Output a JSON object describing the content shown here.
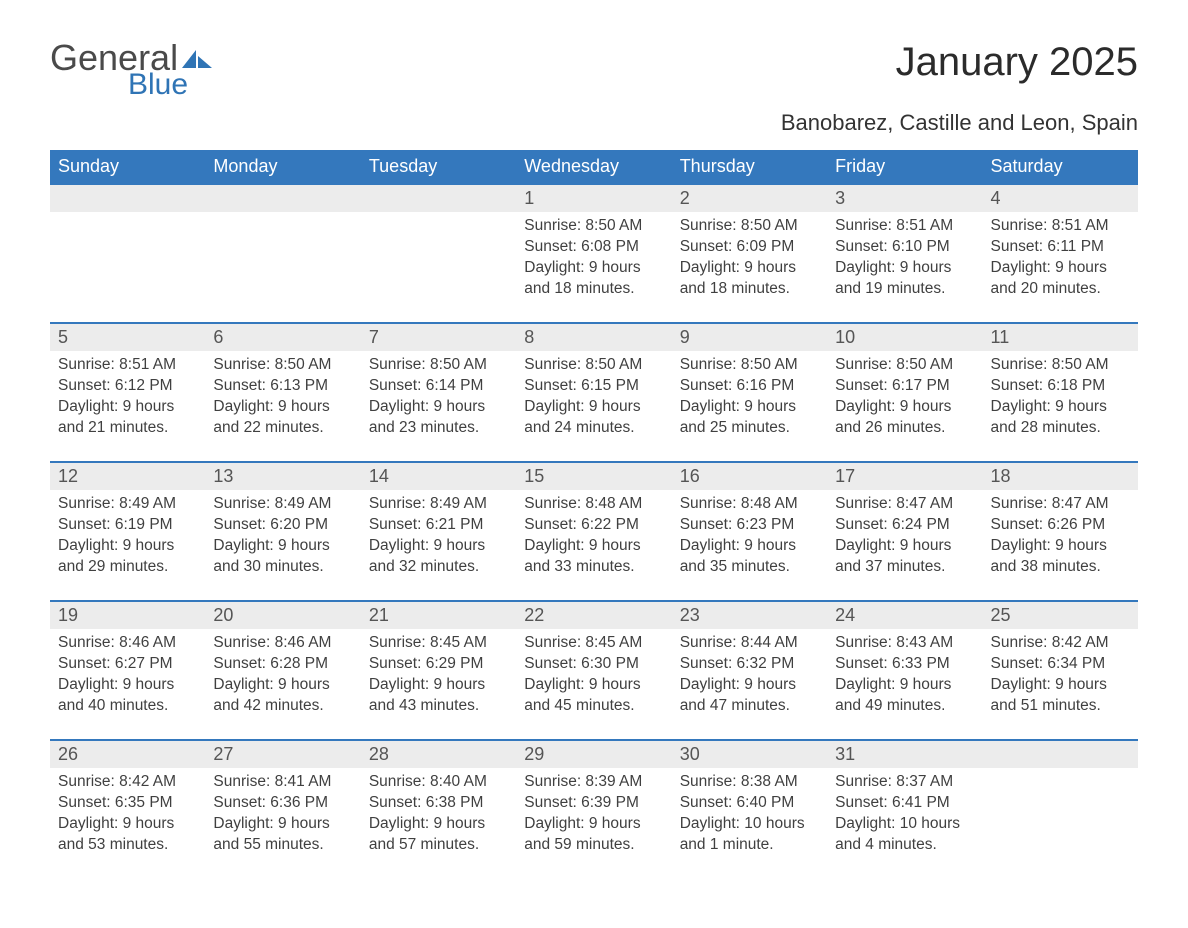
{
  "brand": {
    "general": "General",
    "blue": "Blue",
    "sail_color": "#2f74b5"
  },
  "title": "January 2025",
  "location": "Banobarez, Castille and Leon, Spain",
  "colors": {
    "header_bg": "#3478bd",
    "header_text": "#ffffff",
    "daynum_bg": "#ececec",
    "row_border": "#3478bd",
    "body_text": "#404040"
  },
  "day_headers": [
    "Sunday",
    "Monday",
    "Tuesday",
    "Wednesday",
    "Thursday",
    "Friday",
    "Saturday"
  ],
  "weeks": [
    [
      {
        "empty": true
      },
      {
        "empty": true
      },
      {
        "empty": true
      },
      {
        "num": "1",
        "sunrise": "Sunrise: 8:50 AM",
        "sunset": "Sunset: 6:08 PM",
        "day1": "Daylight: 9 hours",
        "day2": "and 18 minutes."
      },
      {
        "num": "2",
        "sunrise": "Sunrise: 8:50 AM",
        "sunset": "Sunset: 6:09 PM",
        "day1": "Daylight: 9 hours",
        "day2": "and 18 minutes."
      },
      {
        "num": "3",
        "sunrise": "Sunrise: 8:51 AM",
        "sunset": "Sunset: 6:10 PM",
        "day1": "Daylight: 9 hours",
        "day2": "and 19 minutes."
      },
      {
        "num": "4",
        "sunrise": "Sunrise: 8:51 AM",
        "sunset": "Sunset: 6:11 PM",
        "day1": "Daylight: 9 hours",
        "day2": "and 20 minutes."
      }
    ],
    [
      {
        "num": "5",
        "sunrise": "Sunrise: 8:51 AM",
        "sunset": "Sunset: 6:12 PM",
        "day1": "Daylight: 9 hours",
        "day2": "and 21 minutes."
      },
      {
        "num": "6",
        "sunrise": "Sunrise: 8:50 AM",
        "sunset": "Sunset: 6:13 PM",
        "day1": "Daylight: 9 hours",
        "day2": "and 22 minutes."
      },
      {
        "num": "7",
        "sunrise": "Sunrise: 8:50 AM",
        "sunset": "Sunset: 6:14 PM",
        "day1": "Daylight: 9 hours",
        "day2": "and 23 minutes."
      },
      {
        "num": "8",
        "sunrise": "Sunrise: 8:50 AM",
        "sunset": "Sunset: 6:15 PM",
        "day1": "Daylight: 9 hours",
        "day2": "and 24 minutes."
      },
      {
        "num": "9",
        "sunrise": "Sunrise: 8:50 AM",
        "sunset": "Sunset: 6:16 PM",
        "day1": "Daylight: 9 hours",
        "day2": "and 25 minutes."
      },
      {
        "num": "10",
        "sunrise": "Sunrise: 8:50 AM",
        "sunset": "Sunset: 6:17 PM",
        "day1": "Daylight: 9 hours",
        "day2": "and 26 minutes."
      },
      {
        "num": "11",
        "sunrise": "Sunrise: 8:50 AM",
        "sunset": "Sunset: 6:18 PM",
        "day1": "Daylight: 9 hours",
        "day2": "and 28 minutes."
      }
    ],
    [
      {
        "num": "12",
        "sunrise": "Sunrise: 8:49 AM",
        "sunset": "Sunset: 6:19 PM",
        "day1": "Daylight: 9 hours",
        "day2": "and 29 minutes."
      },
      {
        "num": "13",
        "sunrise": "Sunrise: 8:49 AM",
        "sunset": "Sunset: 6:20 PM",
        "day1": "Daylight: 9 hours",
        "day2": "and 30 minutes."
      },
      {
        "num": "14",
        "sunrise": "Sunrise: 8:49 AM",
        "sunset": "Sunset: 6:21 PM",
        "day1": "Daylight: 9 hours",
        "day2": "and 32 minutes."
      },
      {
        "num": "15",
        "sunrise": "Sunrise: 8:48 AM",
        "sunset": "Sunset: 6:22 PM",
        "day1": "Daylight: 9 hours",
        "day2": "and 33 minutes."
      },
      {
        "num": "16",
        "sunrise": "Sunrise: 8:48 AM",
        "sunset": "Sunset: 6:23 PM",
        "day1": "Daylight: 9 hours",
        "day2": "and 35 minutes."
      },
      {
        "num": "17",
        "sunrise": "Sunrise: 8:47 AM",
        "sunset": "Sunset: 6:24 PM",
        "day1": "Daylight: 9 hours",
        "day2": "and 37 minutes."
      },
      {
        "num": "18",
        "sunrise": "Sunrise: 8:47 AM",
        "sunset": "Sunset: 6:26 PM",
        "day1": "Daylight: 9 hours",
        "day2": "and 38 minutes."
      }
    ],
    [
      {
        "num": "19",
        "sunrise": "Sunrise: 8:46 AM",
        "sunset": "Sunset: 6:27 PM",
        "day1": "Daylight: 9 hours",
        "day2": "and 40 minutes."
      },
      {
        "num": "20",
        "sunrise": "Sunrise: 8:46 AM",
        "sunset": "Sunset: 6:28 PM",
        "day1": "Daylight: 9 hours",
        "day2": "and 42 minutes."
      },
      {
        "num": "21",
        "sunrise": "Sunrise: 8:45 AM",
        "sunset": "Sunset: 6:29 PM",
        "day1": "Daylight: 9 hours",
        "day2": "and 43 minutes."
      },
      {
        "num": "22",
        "sunrise": "Sunrise: 8:45 AM",
        "sunset": "Sunset: 6:30 PM",
        "day1": "Daylight: 9 hours",
        "day2": "and 45 minutes."
      },
      {
        "num": "23",
        "sunrise": "Sunrise: 8:44 AM",
        "sunset": "Sunset: 6:32 PM",
        "day1": "Daylight: 9 hours",
        "day2": "and 47 minutes."
      },
      {
        "num": "24",
        "sunrise": "Sunrise: 8:43 AM",
        "sunset": "Sunset: 6:33 PM",
        "day1": "Daylight: 9 hours",
        "day2": "and 49 minutes."
      },
      {
        "num": "25",
        "sunrise": "Sunrise: 8:42 AM",
        "sunset": "Sunset: 6:34 PM",
        "day1": "Daylight: 9 hours",
        "day2": "and 51 minutes."
      }
    ],
    [
      {
        "num": "26",
        "sunrise": "Sunrise: 8:42 AM",
        "sunset": "Sunset: 6:35 PM",
        "day1": "Daylight: 9 hours",
        "day2": "and 53 minutes."
      },
      {
        "num": "27",
        "sunrise": "Sunrise: 8:41 AM",
        "sunset": "Sunset: 6:36 PM",
        "day1": "Daylight: 9 hours",
        "day2": "and 55 minutes."
      },
      {
        "num": "28",
        "sunrise": "Sunrise: 8:40 AM",
        "sunset": "Sunset: 6:38 PM",
        "day1": "Daylight: 9 hours",
        "day2": "and 57 minutes."
      },
      {
        "num": "29",
        "sunrise": "Sunrise: 8:39 AM",
        "sunset": "Sunset: 6:39 PM",
        "day1": "Daylight: 9 hours",
        "day2": "and 59 minutes."
      },
      {
        "num": "30",
        "sunrise": "Sunrise: 8:38 AM",
        "sunset": "Sunset: 6:40 PM",
        "day1": "Daylight: 10 hours",
        "day2": "and 1 minute."
      },
      {
        "num": "31",
        "sunrise": "Sunrise: 8:37 AM",
        "sunset": "Sunset: 6:41 PM",
        "day1": "Daylight: 10 hours",
        "day2": "and 4 minutes."
      },
      {
        "empty": true
      }
    ]
  ]
}
